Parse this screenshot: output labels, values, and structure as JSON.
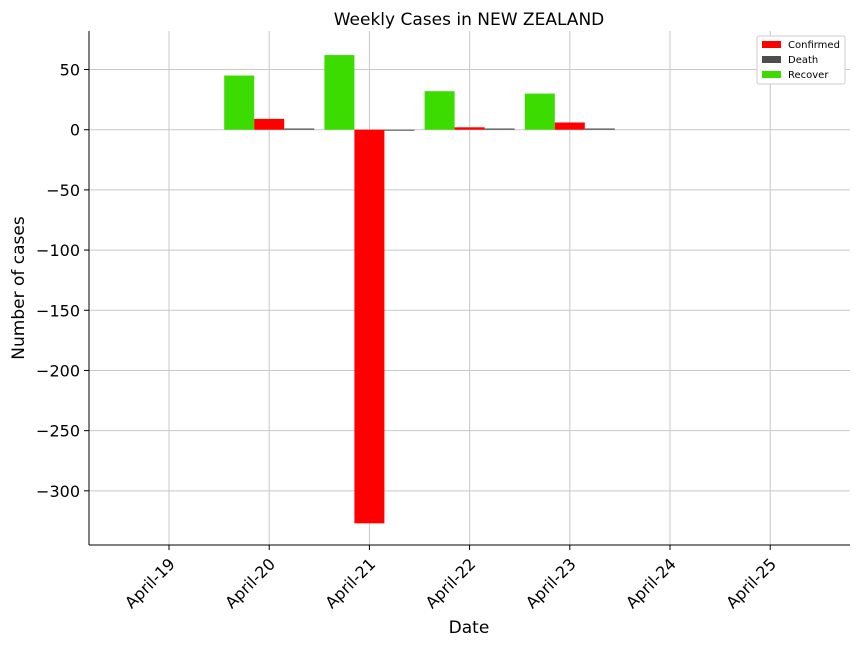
{
  "chart_data": {
    "type": "bar",
    "title": "Weekly Cases in NEW ZEALAND",
    "xlabel": "Date",
    "ylabel": "Number of cases",
    "categories": [
      "April-19",
      "April-20",
      "April-21",
      "April-22",
      "April-23",
      "April-24",
      "April-25"
    ],
    "series": [
      {
        "name": "Recover",
        "color": "#3ddc00",
        "values": [
          null,
          45,
          62,
          32,
          30,
          null,
          null
        ]
      },
      {
        "name": "Confirmed",
        "color": "#ff0000",
        "values": [
          null,
          9,
          -327,
          2,
          6,
          null,
          null
        ]
      },
      {
        "name": "Death",
        "color": "#4d4d4d",
        "values": [
          null,
          1,
          0,
          1,
          1,
          null,
          null
        ]
      }
    ],
    "legend_order": [
      "Confirmed",
      "Death",
      "Recover"
    ],
    "ylim": [
      -345,
      82
    ],
    "yticks": [
      50,
      0,
      -50,
      -100,
      -150,
      -200,
      -250,
      -300
    ],
    "ytick_labels": [
      "50",
      "0",
      "−50",
      "−100",
      "−150",
      "−200",
      "−250",
      "−300"
    ],
    "grid": true,
    "legend_position": "top-right"
  }
}
